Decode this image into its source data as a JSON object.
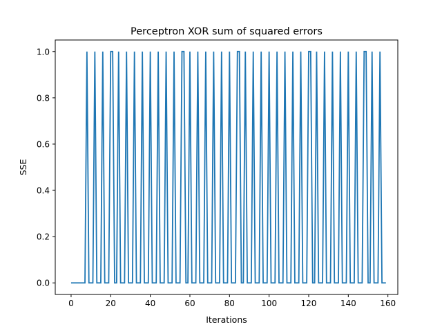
{
  "chart_data": {
    "type": "line",
    "title": "Perceptron XOR sum of squared errors",
    "xlabel": "Iterations",
    "ylabel": "SSE",
    "xlim": [
      -8,
      165
    ],
    "ylim": [
      -0.05,
      1.05
    ],
    "x_ticks": [
      0,
      20,
      40,
      60,
      80,
      100,
      120,
      140,
      160
    ],
    "x_tick_labels": [
      "0",
      "20",
      "40",
      "60",
      "80",
      "100",
      "120",
      "140",
      "160"
    ],
    "y_ticks": [
      0.0,
      0.2,
      0.4,
      0.6,
      0.8,
      1.0
    ],
    "y_tick_labels": [
      "0.0",
      "0.2",
      "0.4",
      "0.6",
      "0.8",
      "1.0"
    ],
    "grid": false,
    "legend": "none",
    "line_color": "#1f77b4",
    "series": [
      {
        "x": [
          0,
          1,
          2,
          3,
          4,
          5,
          6,
          7,
          8,
          9,
          10,
          11,
          12,
          13,
          14,
          15,
          16,
          17,
          18,
          19,
          20,
          21,
          22,
          23,
          24,
          25,
          26,
          27,
          28,
          29,
          30,
          31,
          32,
          33,
          34,
          35,
          36,
          37,
          38,
          39,
          40,
          41,
          42,
          43,
          44,
          45,
          46,
          47,
          48,
          49,
          50,
          51,
          52,
          53,
          54,
          55,
          56,
          57,
          58,
          59,
          60,
          61,
          62,
          63,
          64,
          65,
          66,
          67,
          68,
          69,
          70,
          71,
          72,
          73,
          74,
          75,
          76,
          77,
          78,
          79,
          80,
          81,
          82,
          83,
          84,
          85,
          86,
          87,
          88,
          89,
          90,
          91,
          92,
          93,
          94,
          95,
          96,
          97,
          98,
          99,
          100,
          101,
          102,
          103,
          104,
          105,
          106,
          107,
          108,
          109,
          110,
          111,
          112,
          113,
          114,
          115,
          116,
          117,
          118,
          119,
          120,
          121,
          122,
          123,
          124,
          125,
          126,
          127,
          128,
          129,
          130,
          131,
          132,
          133,
          134,
          135,
          136,
          137,
          138,
          139,
          140,
          141,
          142,
          143,
          144,
          145,
          146,
          147,
          148,
          149,
          150,
          151,
          152,
          153,
          154,
          155,
          156,
          157,
          158,
          159
        ],
        "y": [
          0,
          0,
          0,
          0,
          0,
          0,
          0,
          0,
          1,
          0,
          0,
          0,
          1,
          0,
          0,
          0,
          1,
          0,
          0,
          0,
          1,
          1,
          0,
          0,
          1,
          0,
          0,
          0,
          1,
          0,
          0,
          0,
          1,
          0,
          0,
          0,
          1,
          0,
          0,
          0,
          1,
          0,
          0,
          0,
          1,
          0,
          0,
          0,
          1,
          0,
          0,
          0,
          1,
          0,
          0,
          0,
          1,
          1,
          0,
          0,
          1,
          0,
          0,
          0,
          1,
          0,
          0,
          0,
          1,
          0,
          0,
          0,
          1,
          0,
          0,
          0,
          1,
          0,
          0,
          0,
          1,
          0,
          0,
          0,
          1,
          1,
          0,
          0,
          1,
          0,
          0,
          0,
          1,
          0,
          0,
          0,
          1,
          0,
          0,
          0,
          1,
          0,
          0,
          0,
          1,
          0,
          0,
          0,
          1,
          0,
          0,
          0,
          1,
          0,
          0,
          0,
          1,
          0,
          0,
          0,
          1,
          1,
          0,
          0,
          1,
          0,
          0,
          0,
          1,
          0,
          0,
          0,
          1,
          0,
          0,
          0,
          1,
          0,
          0,
          0,
          1,
          0,
          0,
          0,
          1,
          0,
          0,
          0,
          1,
          1,
          0,
          0,
          1,
          0,
          0,
          0,
          1,
          0,
          0,
          0
        ]
      }
    ]
  }
}
